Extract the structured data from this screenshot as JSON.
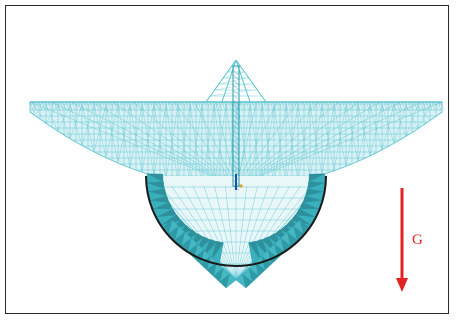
{
  "gravity": {
    "label": "G",
    "color": "#e32222"
  },
  "colors": {
    "mesh": "#58c3cf",
    "mesh_dark": "#2a9aa8",
    "shell_fill": "#3bb0bd",
    "rim": "#1a1a1a",
    "feed_blue": "#1a4fb0",
    "frame": "#2a2a2a",
    "background": "#ffffff"
  }
}
